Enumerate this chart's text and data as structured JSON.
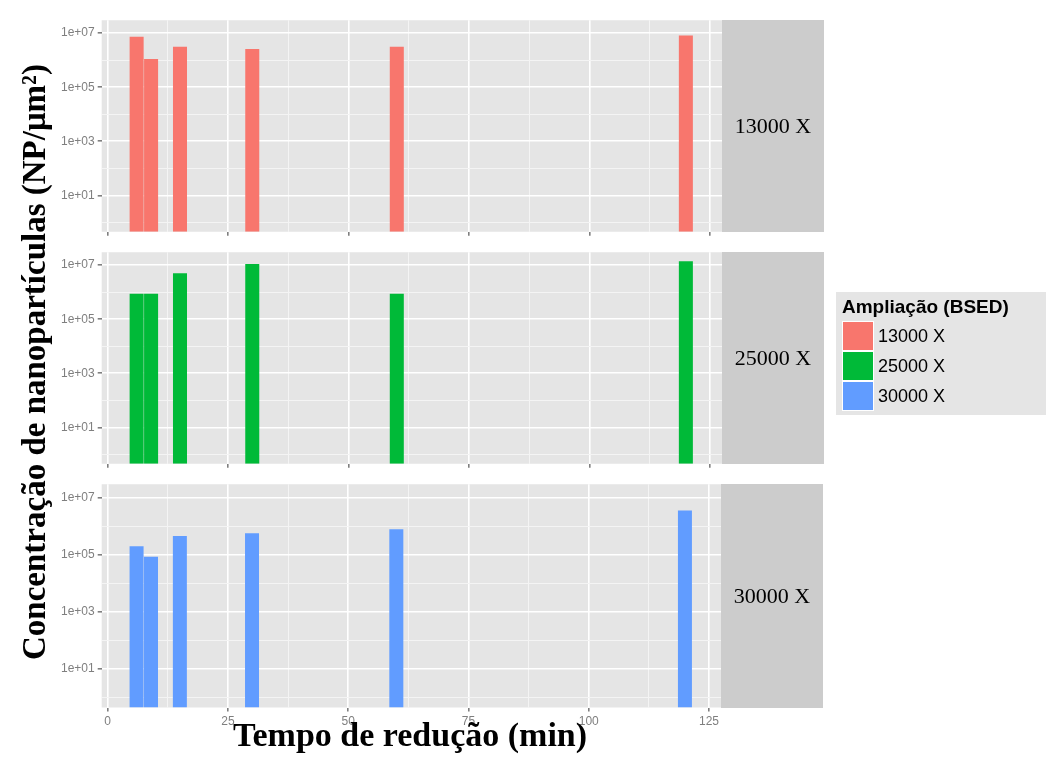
{
  "chart_data": [
    {
      "type": "bar",
      "x": [
        6,
        9,
        15,
        30,
        60,
        120
      ],
      "xlim": [
        -1.25,
        127.5
      ],
      "xticks": [
        0,
        {
          "value": 12.5,
          "label": null
        },
        25,
        {
          "value": 37.5,
          "label": null
        },
        50,
        {
          "value": 62.5,
          "label": null
        },
        75,
        {
          "value": 87.5,
          "label": null
        },
        100,
        {
          "value": 112.5,
          "label": null
        },
        125
      ],
      "log": "y",
      "ylim": [
        0.45,
        30000000
      ],
      "yticks": [
        {
          "value": 1,
          "label": null
        },
        {
          "value": 10,
          "label": "1e+01"
        },
        {
          "value": 100,
          "label": null
        },
        {
          "value": 1000,
          "label": "1e+03"
        },
        {
          "value": 10000,
          "label": null
        },
        {
          "value": 100000,
          "label": "1e+05"
        },
        {
          "value": 1000000,
          "label": null
        },
        {
          "value": 10000000,
          "label": "1e+07"
        }
      ],
      "grid": true,
      "tick_labels": "y",
      "series": [
        {
          "name": "13000 X",
          "color": "#f8766d",
          "values": [
            7400000,
            1100000,
            3100000,
            2600000,
            3100000,
            8100000
          ]
        }
      ]
    },
    {
      "type": "bar",
      "x": [
        6,
        9,
        15,
        30,
        60,
        120
      ],
      "xlim": [
        -1.25,
        127.5
      ],
      "xticks": [
        0,
        {
          "value": 12.5,
          "label": null
        },
        25,
        {
          "value": 37.5,
          "label": null
        },
        50,
        {
          "value": 62.5,
          "label": null
        },
        75,
        {
          "value": 87.5,
          "label": null
        },
        100,
        {
          "value": 112.5,
          "label": null
        },
        125
      ],
      "log": "y",
      "ylim": [
        0.45,
        30000000
      ],
      "yticks": [
        {
          "value": 1,
          "label": null
        },
        {
          "value": 10,
          "label": "1e+01"
        },
        {
          "value": 100,
          "label": null
        },
        {
          "value": 1000,
          "label": "1e+03"
        },
        {
          "value": 10000,
          "label": null
        },
        {
          "value": 100000,
          "label": "1e+05"
        },
        {
          "value": 1000000,
          "label": null
        },
        {
          "value": 10000000,
          "label": "1e+07"
        }
      ],
      "grid": true,
      "tick_labels": "y",
      "ylabel": "Concentração de nanopartículas (NP/μm²)",
      "legend": "right",
      "legend_title": "Ampliação (BSED)",
      "series": [
        {
          "name": "25000 X",
          "color": "#00ba38",
          "values": [
            880000,
            880000,
            5000000,
            11000000,
            880000,
            14000000
          ]
        }
      ]
    },
    {
      "type": "bar",
      "x": [
        6,
        9,
        15,
        30,
        60,
        120
      ],
      "xlim": [
        -1.25,
        127.5
      ],
      "xticks": [
        0,
        {
          "value": 12.5,
          "label": null
        },
        25,
        {
          "value": 37.5,
          "label": null
        },
        50,
        {
          "value": 62.5,
          "label": null
        },
        75,
        {
          "value": 87.5,
          "label": null
        },
        100,
        {
          "value": 112.5,
          "label": null
        },
        125
      ],
      "log": "y",
      "ylim": [
        0.45,
        30000000
      ],
      "yticks": [
        {
          "value": 1,
          "label": null
        },
        {
          "value": 10,
          "label": "1e+01"
        },
        {
          "value": 100,
          "label": null
        },
        {
          "value": 1000,
          "label": "1e+03"
        },
        {
          "value": 10000,
          "label": null
        },
        {
          "value": 100000,
          "label": "1e+05"
        },
        {
          "value": 1000000,
          "label": null
        },
        {
          "value": 10000000,
          "label": "1e+07"
        }
      ],
      "grid": true,
      "xlabel": "Tempo de redução (min)",
      "series": [
        {
          "name": "30000 X",
          "color": "#619cff",
          "values": [
            200000,
            86000,
            460000,
            570000,
            790000,
            3600000
          ]
        }
      ]
    }
  ]
}
